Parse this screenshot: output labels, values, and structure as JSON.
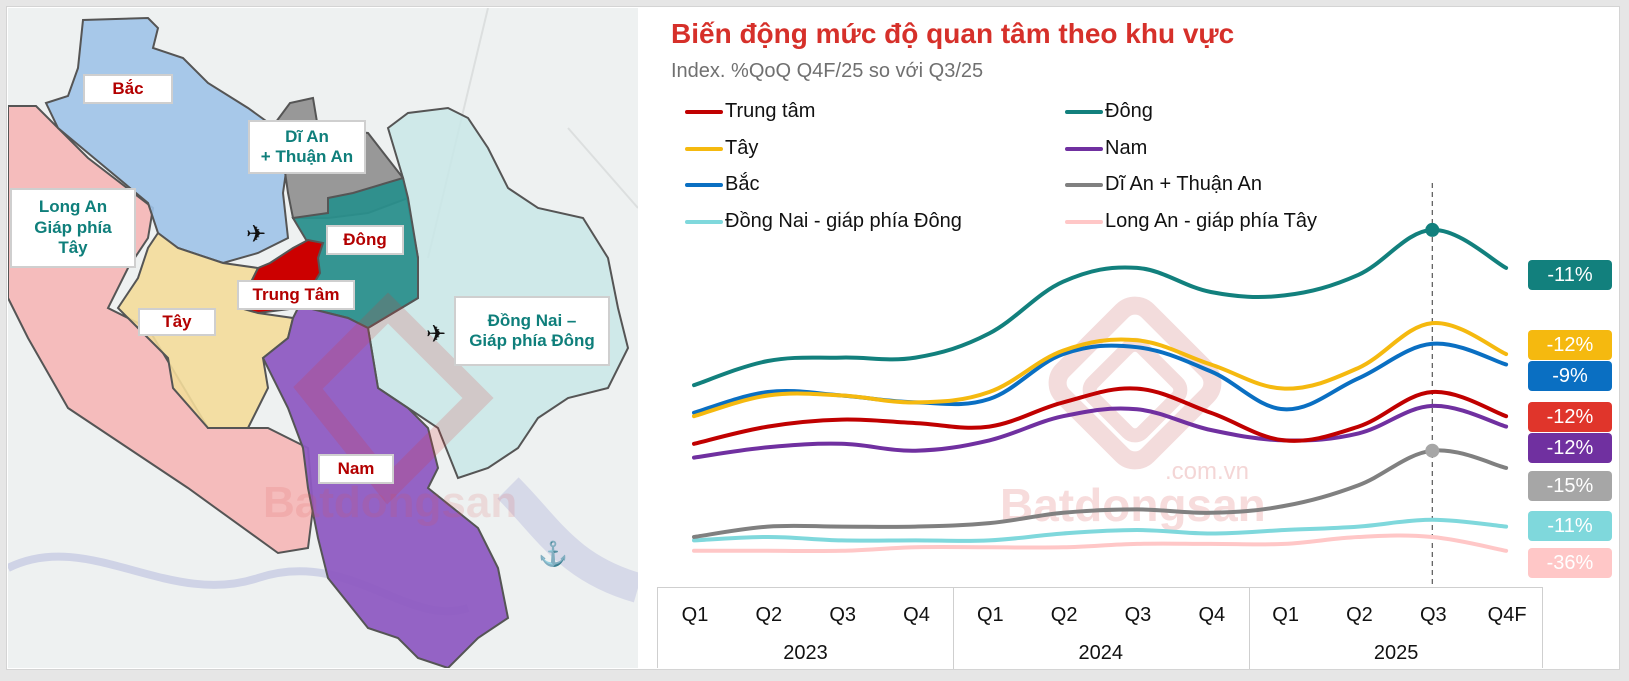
{
  "map": {
    "regions": {
      "bac": "Bắc",
      "di_an": "Dĩ An\n+ Thuận An",
      "long_an": "Long An\nGiáp phía\nTây",
      "dong": "Đông",
      "trung_tam": "Trung Tâm",
      "tay": "Tây",
      "dong_nai": "Đồng Nai –\nGiáp phía Đông",
      "nam": "Nam"
    },
    "colors": {
      "bac": "#9fc3e8",
      "di_an": "#8e8e8e",
      "long_an": "#f6b3b3",
      "dong": "#2a8f8c",
      "trung_tam": "#cc0000",
      "tay": "#f3dc9a",
      "dong_nai": "#c9e8e8",
      "nam": "#8e5bc2"
    },
    "watermark": {
      "brand": "Batdongsan",
      "domain": ".com.vn"
    },
    "icons": [
      "airplane-icon",
      "airplane-icon",
      "anchor-icon"
    ]
  },
  "chart_data": {
    "type": "line",
    "title": "Biến động mức độ quan tâm theo khu vực",
    "subtitle": "Index. %QoQ Q4F/25 so với Q3/25",
    "xlabel": "",
    "ylabel": "",
    "x": [
      "Q1",
      "Q2",
      "Q3",
      "Q4",
      "Q1",
      "Q2",
      "Q3",
      "Q4",
      "Q1",
      "Q2",
      "Q3",
      "Q4F"
    ],
    "year_groups": [
      "2023",
      "2024",
      "2025"
    ],
    "ylim": [
      0,
      100
    ],
    "highlight_x_index": 10,
    "legend_position": "top",
    "series": [
      {
        "name": "Trung tâm",
        "color": "#c00000",
        "values": [
          36,
          41,
          43,
          42,
          41,
          48,
          52,
          45,
          37,
          41,
          51,
          44
        ],
        "change_label": "-12%",
        "label_color": "#e0352b"
      },
      {
        "name": "Đông",
        "color": "#12807d",
        "values": [
          53,
          60,
          61,
          61,
          68,
          83,
          87,
          80,
          79,
          85,
          98,
          87
        ],
        "change_label": "-11%",
        "label_color": "#12807d"
      },
      {
        "name": "Tây",
        "color": "#f5b90f",
        "values": [
          44,
          50,
          50,
          48,
          51,
          63,
          66,
          59,
          52,
          58,
          71,
          62
        ],
        "change_label": "-12%",
        "label_color": "#f5b90f"
      },
      {
        "name": "Nam",
        "color": "#7030a0",
        "values": [
          32,
          35,
          36,
          34,
          37,
          44,
          46,
          40,
          37,
          39,
          47,
          41
        ],
        "change_label": "-12%",
        "label_color": "#7030a0"
      },
      {
        "name": "Bắc",
        "color": "#0a6fc2",
        "values": [
          45,
          51,
          50,
          48,
          49,
          62,
          64,
          57,
          46,
          55,
          65,
          59
        ],
        "change_label": "-9%",
        "label_color": "#0a6fc2"
      },
      {
        "name": "Dĩ An + Thuận An",
        "color": "#808080",
        "values": [
          9,
          12,
          12,
          12,
          13,
          16,
          17,
          16,
          18,
          24,
          34,
          29
        ],
        "change_label": "-15%",
        "label_color": "#a6a6a6"
      },
      {
        "name": "Đồng Nai - giáp phía Đông",
        "color": "#7fd8dc",
        "values": [
          8,
          9,
          8,
          8,
          8,
          10,
          11,
          10,
          11,
          12,
          14,
          12
        ],
        "change_label": "-11%",
        "label_color": "#7fd8dc"
      },
      {
        "name": "Long An - giáp phía Tây",
        "color": "#ffc7c7",
        "values": [
          5,
          5,
          5,
          6,
          6,
          6,
          7,
          7,
          7,
          9,
          9,
          5
        ],
        "change_label": "-36%",
        "label_color": "#ffc7c7"
      }
    ]
  }
}
